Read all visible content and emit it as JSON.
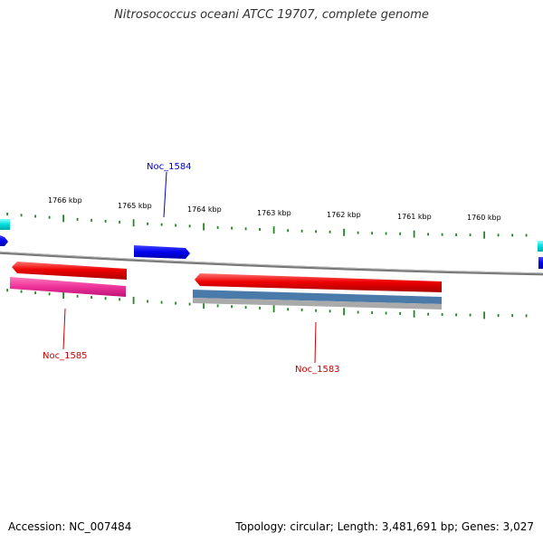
{
  "title": "Nitrosococcus oceani ATCC 19707, complete genome",
  "scale_labels": [
    "1766 kbp",
    "1765 kbp",
    "1764 kbp",
    "1763 kbp",
    "1762 kbp",
    "1761 kbp",
    "1760 kbp"
  ],
  "genes": [
    {
      "name": "Noc_1584",
      "color": "#0000cc"
    },
    {
      "name": "Noc_1585",
      "color": "#cc0000"
    },
    {
      "name": "Noc_1583",
      "color": "#cc0000"
    }
  ],
  "colors": {
    "tick": "#228822",
    "backbone": "#888888",
    "forward_cds": "#0000ee",
    "reverse_cds": "#ee0000",
    "forward_edge": "#00dddd",
    "pink_feature": "#ee3399",
    "steel_feature": "#4477aa"
  },
  "footer": {
    "accession": "Accession: NC_007484",
    "summary": "Topology: circular; Length: 3,481,691 bp; Genes: 3,027"
  }
}
